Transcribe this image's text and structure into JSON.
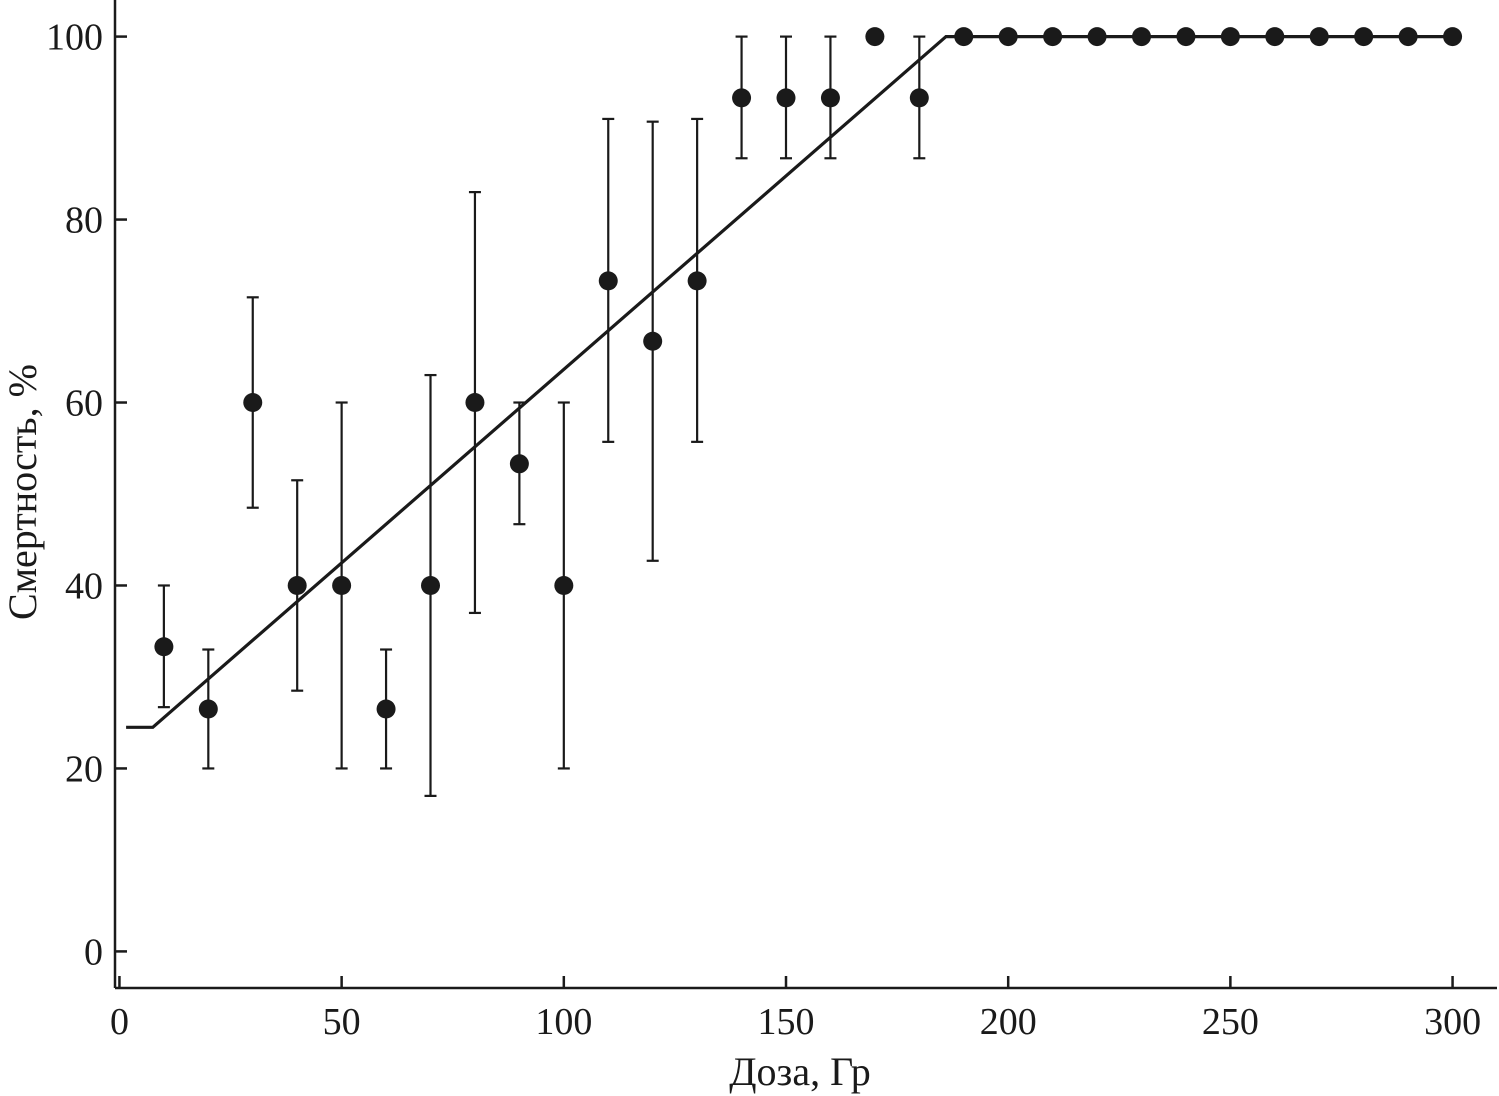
{
  "chart_data": {
    "type": "scatter",
    "title": "",
    "xlabel": "Доза, Гр",
    "ylabel": "Смертность, %",
    "xlim": [
      -1,
      310
    ],
    "ylim": [
      -4,
      104
    ],
    "xticks": [
      0,
      50,
      100,
      150,
      200,
      250,
      300
    ],
    "yticks": [
      0,
      20,
      40,
      60,
      80,
      100
    ],
    "xtick_labels": [
      "0",
      "50",
      "100",
      "150",
      "200",
      "250",
      "300"
    ],
    "ytick_labels": [
      "0",
      "20",
      "40",
      "60",
      "80",
      "100"
    ],
    "grid": false,
    "legend": "none",
    "points": [
      {
        "x": 10,
        "y": 33.3,
        "low": 26.7,
        "high": 40
      },
      {
        "x": 20,
        "y": 26.5,
        "low": 20,
        "high": 33
      },
      {
        "x": 30,
        "y": 60,
        "low": 48.5,
        "high": 71.5
      },
      {
        "x": 40,
        "y": 40,
        "low": 28.5,
        "high": 51.5
      },
      {
        "x": 50,
        "y": 40,
        "low": 20,
        "high": 60
      },
      {
        "x": 60,
        "y": 26.5,
        "low": 20,
        "high": 33
      },
      {
        "x": 70,
        "y": 40,
        "low": 17,
        "high": 63
      },
      {
        "x": 80,
        "y": 60,
        "low": 37,
        "high": 83
      },
      {
        "x": 90,
        "y": 53.3,
        "low": 46.7,
        "high": 60
      },
      {
        "x": 100,
        "y": 40,
        "low": 20,
        "high": 60
      },
      {
        "x": 110,
        "y": 73.3,
        "low": 55.7,
        "high": 91
      },
      {
        "x": 120,
        "y": 66.7,
        "low": 42.7,
        "high": 90.7
      },
      {
        "x": 130,
        "y": 73.3,
        "low": 55.7,
        "high": 91
      },
      {
        "x": 140,
        "y": 93.3,
        "low": 86.7,
        "high": 100
      },
      {
        "x": 150,
        "y": 93.3,
        "low": 86.7,
        "high": 100
      },
      {
        "x": 160,
        "y": 93.3,
        "low": 86.7,
        "high": 100
      },
      {
        "x": 170,
        "y": 100
      },
      {
        "x": 180,
        "y": 93.3,
        "low": 86.7,
        "high": 100
      },
      {
        "x": 190,
        "y": 100
      },
      {
        "x": 200,
        "y": 100
      },
      {
        "x": 210,
        "y": 100
      },
      {
        "x": 220,
        "y": 100
      },
      {
        "x": 230,
        "y": 100
      },
      {
        "x": 240,
        "y": 100
      },
      {
        "x": 250,
        "y": 100
      },
      {
        "x": 260,
        "y": 100
      },
      {
        "x": 270,
        "y": 100
      },
      {
        "x": 280,
        "y": 100
      },
      {
        "x": 290,
        "y": 100
      },
      {
        "x": 300,
        "y": 100
      }
    ],
    "fit_line": {
      "x": [
        1.5,
        7.5,
        186,
        300
      ],
      "y": [
        24.5,
        24.5,
        100,
        100
      ]
    }
  }
}
